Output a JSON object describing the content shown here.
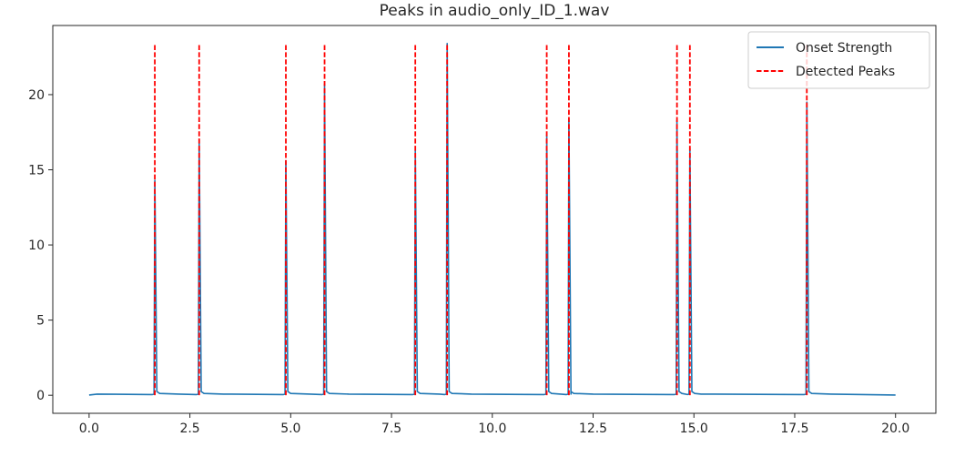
{
  "chart_data": {
    "type": "line",
    "title": "Peaks in audio_only_ID_1.wav",
    "xlabel": "",
    "ylabel": "",
    "xlim": [
      -0.9,
      21.0
    ],
    "ylim": [
      -1.2,
      24.6
    ],
    "xticks": [
      0.0,
      2.5,
      5.0,
      7.5,
      10.0,
      12.5,
      15.0,
      17.5,
      20.0
    ],
    "xtick_labels": [
      "0.0",
      "2.5",
      "5.0",
      "7.5",
      "10.0",
      "12.5",
      "15.0",
      "17.5",
      "20.0"
    ],
    "yticks": [
      0,
      5,
      10,
      15,
      20
    ],
    "ytick_labels": [
      "0",
      "5",
      "10",
      "15",
      "20"
    ],
    "grid": false,
    "legend_position": "top-right",
    "series": [
      {
        "name": "Onset Strength",
        "style": "solid",
        "color": "#1f77b4",
        "baseline": 0.05,
        "peaks": [
          {
            "x": 1.63,
            "y": 14.3
          },
          {
            "x": 2.73,
            "y": 17.0
          },
          {
            "x": 4.88,
            "y": 15.6
          },
          {
            "x": 5.84,
            "y": 20.7
          },
          {
            "x": 8.09,
            "y": 16.3
          },
          {
            "x": 8.88,
            "y": 23.4
          },
          {
            "x": 11.35,
            "y": 17.3
          },
          {
            "x": 11.9,
            "y": 18.4
          },
          {
            "x": 14.58,
            "y": 18.3
          },
          {
            "x": 14.9,
            "y": 16.4
          },
          {
            "x": 17.8,
            "y": 19.5
          }
        ]
      },
      {
        "name": "Detected Peaks",
        "style": "dashed",
        "color": "#ff0000",
        "ymin": 0.0,
        "ymax": 23.4,
        "x": [
          1.63,
          2.73,
          4.88,
          5.84,
          8.09,
          8.88,
          11.35,
          11.9,
          14.58,
          14.9,
          17.8
        ]
      }
    ]
  }
}
